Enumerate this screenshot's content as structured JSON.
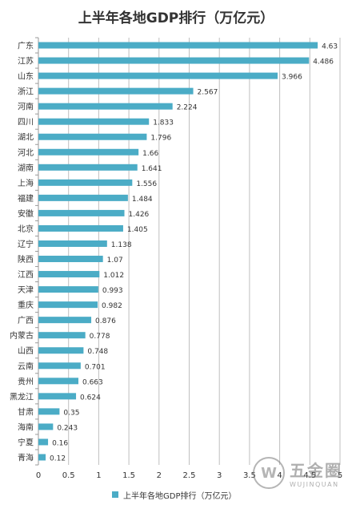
{
  "chart_data": {
    "type": "bar",
    "orientation": "horizontal",
    "title": "上半年各地GDP排行（万亿元）",
    "categories": [
      "广东",
      "江苏",
      "山东",
      "浙江",
      "河南",
      "四川",
      "湖北",
      "河北",
      "湖南",
      "上海",
      "福建",
      "安徽",
      "北京",
      "辽宁",
      "陕西",
      "江西",
      "天津",
      "重庆",
      "广西",
      "内蒙古",
      "山西",
      "云南",
      "贵州",
      "黑龙江",
      "甘肃",
      "海南",
      "宁夏",
      "青海"
    ],
    "series": [
      {
        "name": "上半年各地GDP排行（万亿元）",
        "values": [
          4.63,
          4.486,
          3.966,
          2.567,
          2.224,
          1.833,
          1.796,
          1.66,
          1.641,
          1.556,
          1.484,
          1.426,
          1.405,
          1.138,
          1.07,
          1.012,
          0.993,
          0.982,
          0.876,
          0.778,
          0.748,
          0.701,
          0.663,
          0.624,
          0.35,
          0.243,
          0.16,
          0.12
        ],
        "labels": [
          "4.63",
          "4.486",
          "3.966",
          "2.567",
          "2.224",
          "1.833",
          "1.796",
          "1.66",
          "1.641",
          "1.556",
          "1.484",
          "1.426",
          "1.405",
          "1.138",
          "1.07",
          "1.012",
          "0.993",
          "0.982",
          "0.876",
          "0.778",
          "0.748",
          "0.701",
          "0.663",
          "0.624",
          "0.35",
          "0.243",
          "0.16",
          "0.12"
        ]
      }
    ],
    "xlim": [
      0,
      5
    ],
    "xticks": [
      "0",
      "0.5",
      "1",
      "1.5",
      "2",
      "2.5",
      "3",
      "3.5",
      "4",
      "4.5",
      "5"
    ],
    "grid": true,
    "legend": "bottom",
    "colors": {
      "bar": "#4bacc6",
      "grid": "#bfbfbf",
      "axis": "#999999",
      "text": "#333333"
    }
  },
  "watermark": {
    "logo_glyph": "W",
    "name": "五金圈",
    "sub": "WUJINQUAN"
  }
}
